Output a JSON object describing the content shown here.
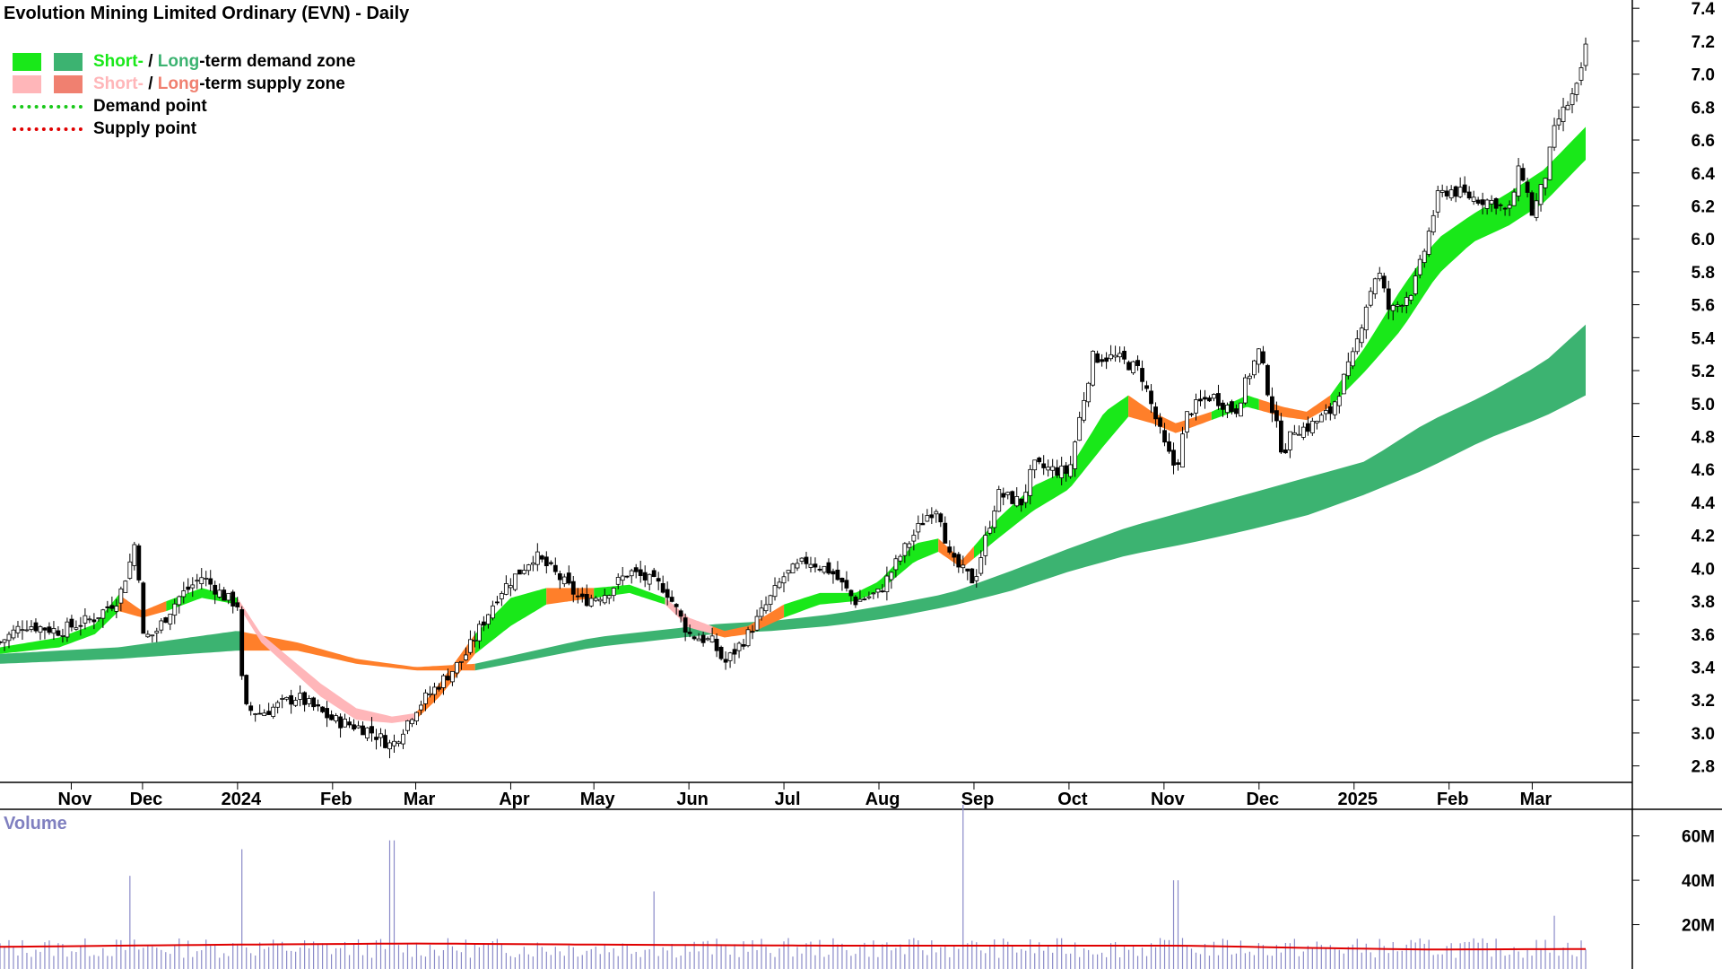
{
  "title": "Evolution Mining Limited Ordinary (EVN) - Daily",
  "legend": {
    "demand_short": "Short-",
    "demand_sep": " / ",
    "demand_long": "Long",
    "demand_rest": "-term demand zone",
    "supply_short": "Short-",
    "supply_sep": " / ",
    "supply_long": "Long",
    "supply_rest": "-term supply zone",
    "demand_point": "Demand point",
    "supply_point": "Supply point"
  },
  "volume_label": "Volume",
  "colors": {
    "short_demand": "#19e819",
    "long_demand": "#3cb371",
    "short_supply": "#ffb6b9",
    "long_supply": "#f08070",
    "orange_zone": "#ff7f2a",
    "demand_point": "#19c819",
    "supply_point": "#e00000",
    "volume_bars": "#8a8ac8",
    "volume_avg": "#e00000"
  },
  "chart_data": {
    "type": "candlestick",
    "title": "Evolution Mining Limited Ordinary (EVN) - Daily",
    "x_tick_labels": [
      "Nov",
      "Dec",
      "2024",
      "Feb",
      "Mar",
      "Apr",
      "May",
      "Jun",
      "Jul",
      "Aug",
      "Sep",
      "Oct",
      "Nov",
      "Dec",
      "2025",
      "Feb",
      "Mar"
    ],
    "x_tick_positions": [
      0.06,
      0.12,
      0.2,
      0.28,
      0.35,
      0.43,
      0.5,
      0.58,
      0.66,
      0.74,
      0.82,
      0.9,
      0.98,
      1.06,
      1.14,
      1.22,
      1.29
    ],
    "price_axis": {
      "ylim": [
        2.7,
        7.45
      ],
      "tick_labels": [
        "2.8",
        "3.0",
        "3.2",
        "3.4",
        "3.6",
        "3.8",
        "4.0",
        "4.2",
        "4.4",
        "4.6",
        "4.8",
        "5.0",
        "5.2",
        "5.4",
        "5.6",
        "5.8",
        "6.0",
        "6.2",
        "6.4",
        "6.6",
        "6.8",
        "7.0",
        "7.2",
        "7.4"
      ]
    },
    "volume_axis": {
      "ylim": [
        0,
        72
      ],
      "tick_labels": [
        "20M",
        "40M",
        "60M"
      ],
      "tick_values": [
        20,
        40,
        60
      ],
      "unit": "M"
    },
    "series": [
      {
        "name": "Price",
        "kind": "candles",
        "anchors": [
          [
            0.0,
            3.55
          ],
          [
            0.02,
            3.66
          ],
          [
            0.05,
            3.62
          ],
          [
            0.08,
            3.7
          ],
          [
            0.1,
            3.82
          ],
          [
            0.11,
            4.05
          ],
          [
            0.115,
            4.2
          ],
          [
            0.12,
            3.58
          ],
          [
            0.13,
            3.6
          ],
          [
            0.15,
            3.82
          ],
          [
            0.17,
            3.95
          ],
          [
            0.19,
            3.82
          ],
          [
            0.2,
            3.78
          ],
          [
            0.205,
            3.15
          ],
          [
            0.22,
            3.12
          ],
          [
            0.25,
            3.22
          ],
          [
            0.28,
            3.08
          ],
          [
            0.31,
            3.02
          ],
          [
            0.33,
            2.92
          ],
          [
            0.35,
            3.15
          ],
          [
            0.37,
            3.3
          ],
          [
            0.39,
            3.45
          ],
          [
            0.42,
            3.85
          ],
          [
            0.44,
            4.0
          ],
          [
            0.45,
            4.08
          ],
          [
            0.47,
            3.95
          ],
          [
            0.49,
            3.8
          ],
          [
            0.51,
            3.85
          ],
          [
            0.53,
            3.98
          ],
          [
            0.56,
            3.88
          ],
          [
            0.58,
            3.6
          ],
          [
            0.6,
            3.55
          ],
          [
            0.61,
            3.42
          ],
          [
            0.63,
            3.6
          ],
          [
            0.66,
            3.95
          ],
          [
            0.68,
            4.05
          ],
          [
            0.7,
            3.98
          ],
          [
            0.72,
            3.8
          ],
          [
            0.74,
            3.85
          ],
          [
            0.76,
            4.1
          ],
          [
            0.78,
            4.32
          ],
          [
            0.79,
            4.38
          ],
          [
            0.8,
            4.05
          ],
          [
            0.82,
            3.92
          ],
          [
            0.84,
            4.45
          ],
          [
            0.86,
            4.4
          ],
          [
            0.87,
            4.62
          ],
          [
            0.9,
            4.58
          ],
          [
            0.91,
            4.95
          ],
          [
            0.92,
            5.28
          ],
          [
            0.94,
            5.28
          ],
          [
            0.96,
            5.2
          ],
          [
            0.98,
            4.75
          ],
          [
            0.99,
            4.6
          ],
          [
            1.0,
            4.95
          ],
          [
            1.02,
            5.05
          ],
          [
            1.04,
            4.95
          ],
          [
            1.05,
            5.15
          ],
          [
            1.06,
            5.32
          ],
          [
            1.07,
            5.0
          ],
          [
            1.08,
            4.7
          ],
          [
            1.09,
            4.85
          ],
          [
            1.1,
            4.85
          ],
          [
            1.12,
            4.95
          ],
          [
            1.14,
            5.3
          ],
          [
            1.15,
            5.6
          ],
          [
            1.16,
            5.82
          ],
          [
            1.17,
            5.55
          ],
          [
            1.19,
            5.7
          ],
          [
            1.2,
            5.95
          ],
          [
            1.21,
            6.25
          ],
          [
            1.22,
            6.3
          ],
          [
            1.24,
            6.25
          ],
          [
            1.26,
            6.22
          ],
          [
            1.27,
            6.15
          ],
          [
            1.28,
            6.45
          ],
          [
            1.29,
            6.15
          ],
          [
            1.3,
            6.35
          ],
          [
            1.31,
            6.7
          ],
          [
            1.325,
            6.88
          ],
          [
            1.33,
            6.95
          ],
          [
            1.335,
            7.18
          ]
        ],
        "x_range": [
          0.0,
          1.335
        ],
        "x_unit": "axis-fraction-scaled"
      },
      {
        "name": "Short-term zone",
        "kind": "band",
        "upper": [
          [
            0.0,
            3.52
          ],
          [
            0.05,
            3.58
          ],
          [
            0.08,
            3.66
          ],
          [
            0.1,
            3.84
          ],
          [
            0.12,
            3.74
          ],
          [
            0.14,
            3.8
          ],
          [
            0.17,
            3.88
          ],
          [
            0.2,
            3.82
          ],
          [
            0.22,
            3.6
          ],
          [
            0.27,
            3.3
          ],
          [
            0.3,
            3.15
          ],
          [
            0.33,
            3.1
          ],
          [
            0.35,
            3.12
          ],
          [
            0.37,
            3.3
          ],
          [
            0.4,
            3.6
          ],
          [
            0.43,
            3.82
          ],
          [
            0.46,
            3.88
          ],
          [
            0.5,
            3.88
          ],
          [
            0.53,
            3.9
          ],
          [
            0.56,
            3.82
          ],
          [
            0.58,
            3.7
          ],
          [
            0.61,
            3.62
          ],
          [
            0.63,
            3.65
          ],
          [
            0.66,
            3.78
          ],
          [
            0.69,
            3.85
          ],
          [
            0.72,
            3.85
          ],
          [
            0.74,
            3.92
          ],
          [
            0.77,
            4.15
          ],
          [
            0.79,
            4.18
          ],
          [
            0.81,
            4.05
          ],
          [
            0.84,
            4.3
          ],
          [
            0.87,
            4.5
          ],
          [
            0.9,
            4.6
          ],
          [
            0.93,
            4.95
          ],
          [
            0.95,
            5.05
          ],
          [
            0.97,
            4.95
          ],
          [
            0.99,
            4.88
          ],
          [
            1.02,
            4.95
          ],
          [
            1.05,
            5.05
          ],
          [
            1.08,
            4.98
          ],
          [
            1.1,
            4.95
          ],
          [
            1.12,
            5.05
          ],
          [
            1.15,
            5.35
          ],
          [
            1.18,
            5.7
          ],
          [
            1.21,
            6.0
          ],
          [
            1.24,
            6.15
          ],
          [
            1.27,
            6.28
          ],
          [
            1.3,
            6.42
          ],
          [
            1.335,
            6.68
          ]
        ],
        "lower": [
          [
            0.0,
            3.48
          ],
          [
            0.05,
            3.52
          ],
          [
            0.08,
            3.6
          ],
          [
            0.1,
            3.74
          ],
          [
            0.12,
            3.7
          ],
          [
            0.14,
            3.74
          ],
          [
            0.17,
            3.82
          ],
          [
            0.2,
            3.78
          ],
          [
            0.22,
            3.55
          ],
          [
            0.27,
            3.22
          ],
          [
            0.3,
            3.08
          ],
          [
            0.33,
            3.06
          ],
          [
            0.35,
            3.08
          ],
          [
            0.37,
            3.22
          ],
          [
            0.4,
            3.48
          ],
          [
            0.43,
            3.65
          ],
          [
            0.46,
            3.78
          ],
          [
            0.5,
            3.82
          ],
          [
            0.53,
            3.85
          ],
          [
            0.56,
            3.78
          ],
          [
            0.58,
            3.64
          ],
          [
            0.61,
            3.58
          ],
          [
            0.63,
            3.6
          ],
          [
            0.66,
            3.7
          ],
          [
            0.69,
            3.78
          ],
          [
            0.72,
            3.8
          ],
          [
            0.74,
            3.86
          ],
          [
            0.77,
            4.04
          ],
          [
            0.79,
            4.1
          ],
          [
            0.81,
            4.0
          ],
          [
            0.84,
            4.18
          ],
          [
            0.87,
            4.35
          ],
          [
            0.9,
            4.48
          ],
          [
            0.93,
            4.75
          ],
          [
            0.95,
            4.92
          ],
          [
            0.97,
            4.88
          ],
          [
            0.99,
            4.82
          ],
          [
            1.02,
            4.9
          ],
          [
            1.05,
            4.98
          ],
          [
            1.08,
            4.92
          ],
          [
            1.1,
            4.9
          ],
          [
            1.12,
            4.98
          ],
          [
            1.15,
            5.2
          ],
          [
            1.18,
            5.45
          ],
          [
            1.21,
            5.78
          ],
          [
            1.24,
            5.98
          ],
          [
            1.27,
            6.08
          ],
          [
            1.3,
            6.22
          ],
          [
            1.335,
            6.48
          ]
        ]
      },
      {
        "name": "Long-term zone",
        "kind": "band",
        "upper": [
          [
            0.0,
            3.48
          ],
          [
            0.1,
            3.52
          ],
          [
            0.2,
            3.62
          ],
          [
            0.25,
            3.55
          ],
          [
            0.3,
            3.45
          ],
          [
            0.35,
            3.4
          ],
          [
            0.4,
            3.42
          ],
          [
            0.45,
            3.5
          ],
          [
            0.5,
            3.58
          ],
          [
            0.55,
            3.62
          ],
          [
            0.6,
            3.66
          ],
          [
            0.65,
            3.68
          ],
          [
            0.7,
            3.72
          ],
          [
            0.75,
            3.78
          ],
          [
            0.8,
            3.85
          ],
          [
            0.85,
            3.98
          ],
          [
            0.9,
            4.12
          ],
          [
            0.95,
            4.25
          ],
          [
            1.0,
            4.35
          ],
          [
            1.05,
            4.45
          ],
          [
            1.1,
            4.55
          ],
          [
            1.15,
            4.65
          ],
          [
            1.2,
            4.88
          ],
          [
            1.25,
            5.05
          ],
          [
            1.3,
            5.25
          ],
          [
            1.335,
            5.48
          ]
        ],
        "lower": [
          [
            0.0,
            3.42
          ],
          [
            0.1,
            3.45
          ],
          [
            0.2,
            3.5
          ],
          [
            0.25,
            3.5
          ],
          [
            0.3,
            3.42
          ],
          [
            0.35,
            3.38
          ],
          [
            0.4,
            3.38
          ],
          [
            0.45,
            3.45
          ],
          [
            0.5,
            3.52
          ],
          [
            0.55,
            3.56
          ],
          [
            0.6,
            3.6
          ],
          [
            0.65,
            3.62
          ],
          [
            0.7,
            3.65
          ],
          [
            0.75,
            3.7
          ],
          [
            0.8,
            3.77
          ],
          [
            0.85,
            3.86
          ],
          [
            0.9,
            3.98
          ],
          [
            0.95,
            4.08
          ],
          [
            1.0,
            4.15
          ],
          [
            1.05,
            4.23
          ],
          [
            1.1,
            4.32
          ],
          [
            1.15,
            4.45
          ],
          [
            1.2,
            4.6
          ],
          [
            1.25,
            4.78
          ],
          [
            1.3,
            4.92
          ],
          [
            1.335,
            5.05
          ]
        ]
      },
      {
        "name": "Volume",
        "kind": "bars",
        "typical": 10,
        "spikes": [
          [
            0.11,
            42
          ],
          [
            0.205,
            54
          ],
          [
            0.33,
            58
          ],
          [
            0.55,
            35
          ],
          [
            0.81,
            74
          ],
          [
            0.99,
            40
          ],
          [
            1.31,
            24
          ]
        ]
      },
      {
        "name": "Volume average",
        "kind": "line",
        "values": [
          [
            0.0,
            10
          ],
          [
            0.2,
            11
          ],
          [
            0.35,
            11.5
          ],
          [
            0.5,
            11
          ],
          [
            0.7,
            10.5
          ],
          [
            0.9,
            10.5
          ],
          [
            1.0,
            10.5
          ],
          [
            1.1,
            9.5
          ],
          [
            1.2,
            8.8
          ],
          [
            1.335,
            9
          ]
        ]
      }
    ]
  }
}
